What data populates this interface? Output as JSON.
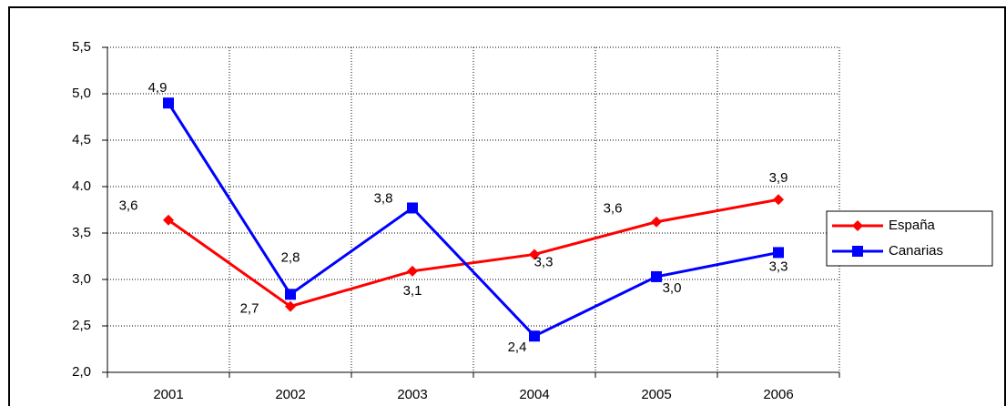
{
  "chart_data": {
    "type": "line",
    "categories": [
      "2001",
      "2002",
      "2003",
      "2004",
      "2005",
      "2006"
    ],
    "series": [
      {
        "name": "España",
        "color": "#ff0000",
        "marker": "diamond",
        "values": [
          3.64,
          2.71,
          3.09,
          3.27,
          3.62,
          3.86
        ],
        "value_labels": [
          "3,6",
          "2,7",
          "3,1",
          "3,3",
          "3,6",
          "3,9"
        ]
      },
      {
        "name": "Canarias",
        "color": "#0000ff",
        "marker": "square",
        "values": [
          4.9,
          2.84,
          3.77,
          2.39,
          3.03,
          3.29
        ],
        "value_labels": [
          "4,9",
          "2,8",
          "3,8",
          "2,4",
          "3,0",
          "3,3"
        ]
      }
    ],
    "ylim": [
      2.0,
      5.5
    ],
    "yticks": [
      {
        "value": 2.0,
        "label": "2,0"
      },
      {
        "value": 2.5,
        "label": "2,5"
      },
      {
        "value": 3.0,
        "label": "3,0"
      },
      {
        "value": 3.5,
        "label": "3,5"
      },
      {
        "value": 4.0,
        "label": "4.0"
      },
      {
        "value": 4.5,
        "label": "4,5"
      },
      {
        "value": 5.0,
        "label": "5,0"
      },
      {
        "value": 5.5,
        "label": "5,5"
      }
    ],
    "grid": true,
    "legend": "right"
  }
}
